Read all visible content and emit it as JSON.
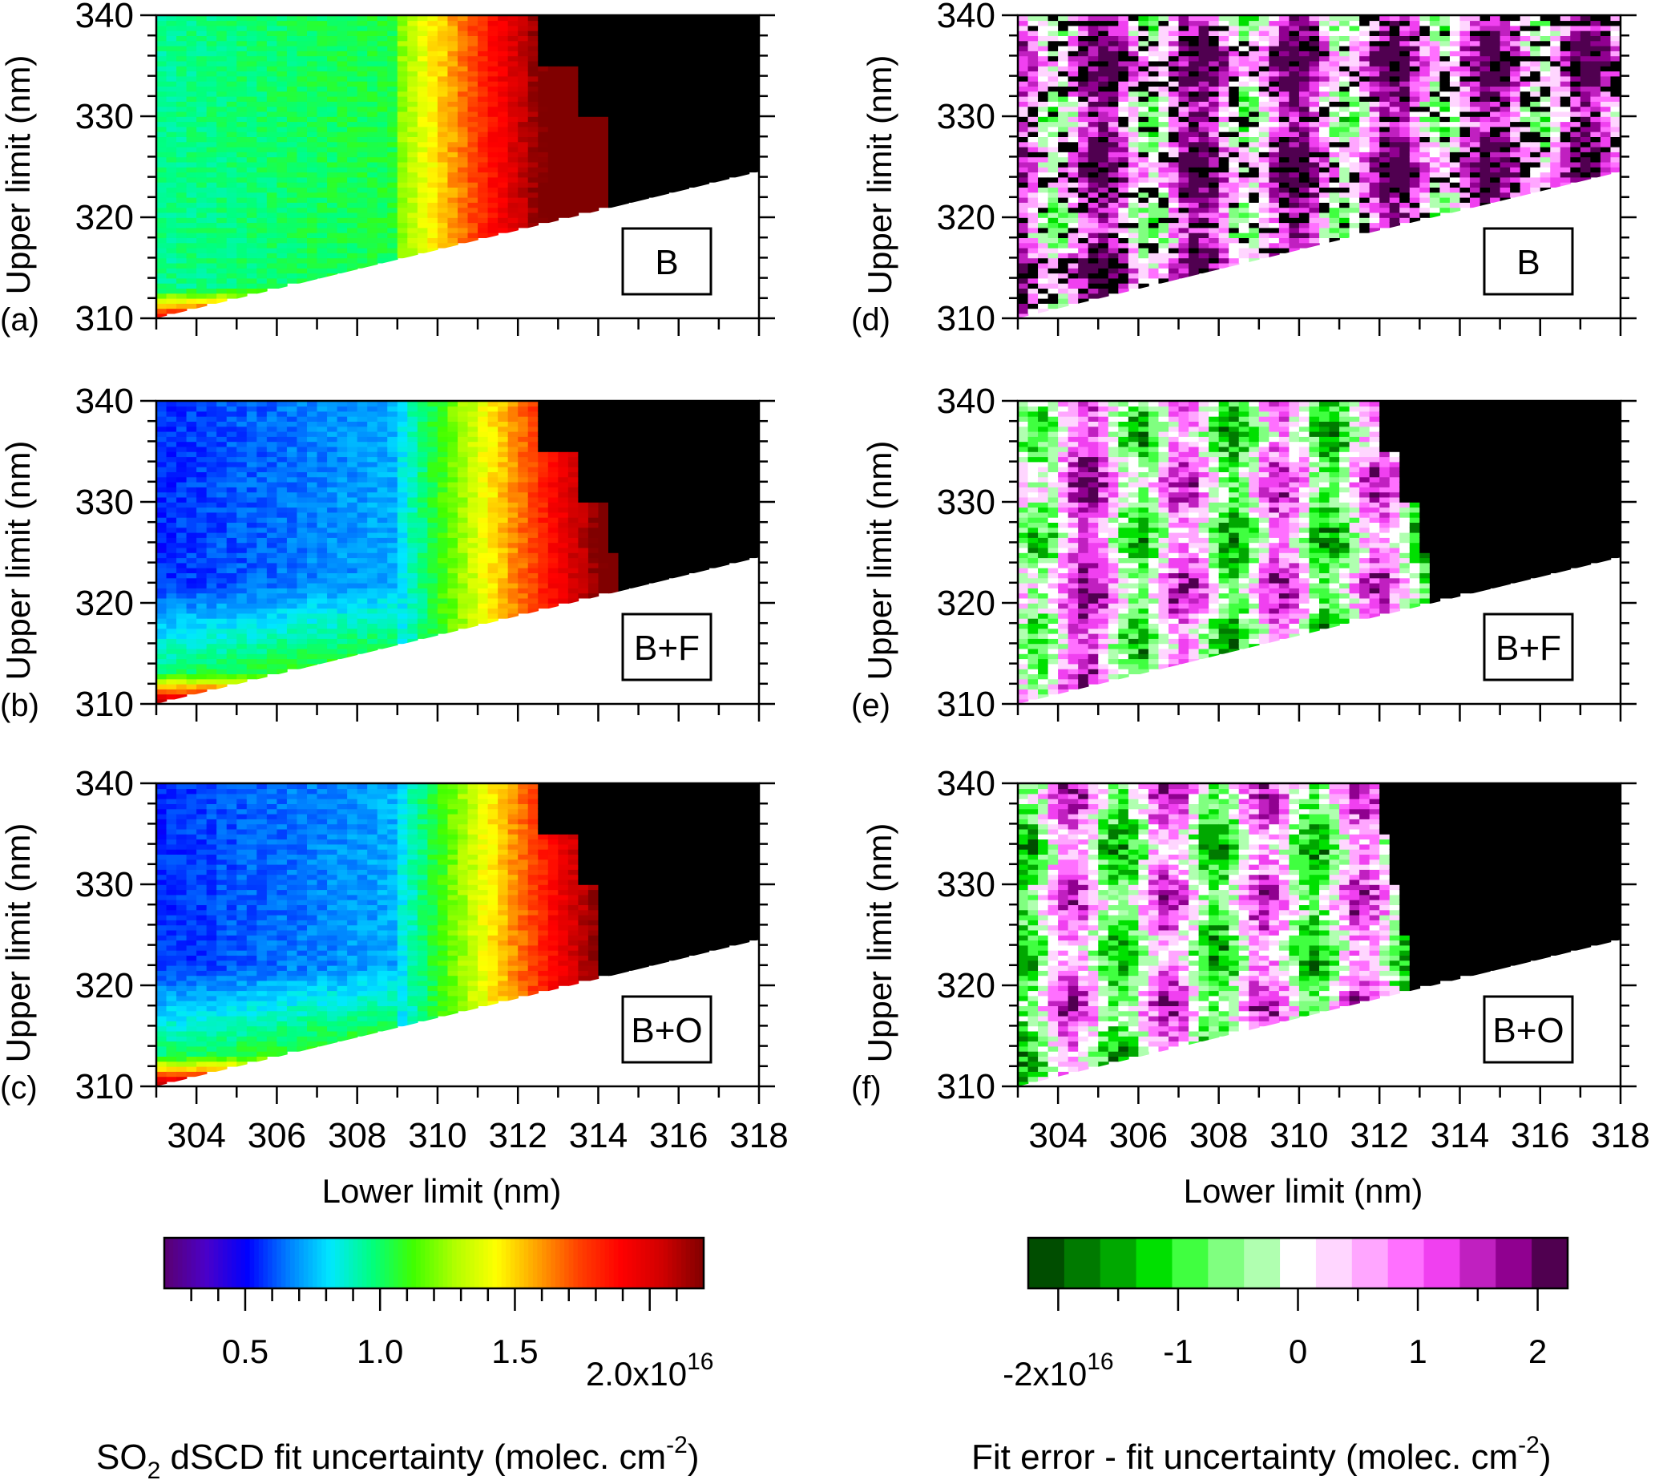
{
  "chart_data": [
    {
      "type": "heatmap",
      "panel": "(a)",
      "label": "B",
      "colorbar": "uncertainty",
      "ylabel": "Upper limit (nm)",
      "xlim": [
        303,
        318
      ],
      "ylim": [
        310,
        340
      ],
      "yticks": [
        "310",
        "320",
        "330",
        "340"
      ],
      "boundary": {
        "lower_limit": [
          303,
          318
        ],
        "upper_limit": [
          310,
          324.5
        ]
      },
      "cutoff_x": [
        312,
        313.2,
        314.2,
        314.2,
        313.5,
        312.5
      ]
    },
    {
      "type": "heatmap",
      "panel": "(b)",
      "label": "B+F",
      "colorbar": "uncertainty",
      "ylabel": "Upper limit (nm)",
      "xlim": [
        303,
        318
      ],
      "ylim": [
        310,
        340
      ],
      "yticks": [
        "310",
        "320",
        "330",
        "340"
      ],
      "boundary": {
        "lower_limit": [
          303,
          318
        ],
        "upper_limit": [
          310,
          324.5
        ]
      },
      "cutoff_x": [
        312,
        313.2,
        314.5,
        314.2,
        313.5,
        312.5
      ]
    },
    {
      "type": "heatmap",
      "panel": "(c)",
      "label": "B+O",
      "colorbar": "uncertainty",
      "ylabel": "Upper limit (nm)",
      "xlabel": "Lower limit (nm)",
      "xlim": [
        303,
        318
      ],
      "ylim": [
        310,
        340
      ],
      "xticks": [
        "304",
        "306",
        "308",
        "310",
        "312",
        "314",
        "316",
        "318"
      ],
      "yticks": [
        "310",
        "320",
        "330",
        "340"
      ],
      "boundary": {
        "lower_limit": [
          303,
          318
        ],
        "upper_limit": [
          310,
          324.5
        ]
      },
      "cutoff_x": [
        312,
        313.2,
        314,
        314,
        313.5,
        312.5
      ]
    },
    {
      "type": "heatmap",
      "panel": "(d)",
      "label": "B",
      "colorbar": "difference",
      "ylabel": "Upper limit (nm)",
      "xlim": [
        303,
        318
      ],
      "ylim": [
        310,
        340
      ],
      "yticks": [
        "310",
        "320",
        "330",
        "340"
      ],
      "boundary": {
        "lower_limit": [
          303,
          318
        ],
        "upper_limit": [
          310,
          324.5
        ]
      },
      "cutoff_x": [
        318,
        318,
        318,
        318,
        318,
        318
      ]
    },
    {
      "type": "heatmap",
      "panel": "(e)",
      "label": "B+F",
      "colorbar": "difference",
      "ylabel": "Upper limit (nm)",
      "xlim": [
        303,
        318
      ],
      "ylim": [
        310,
        340
      ],
      "yticks": [
        "310",
        "320",
        "330",
        "340"
      ],
      "boundary": {
        "lower_limit": [
          303,
          318
        ],
        "upper_limit": [
          310,
          324.5
        ]
      },
      "cutoff_x": [
        312.3,
        313.2,
        313.2,
        313,
        312.5,
        312
      ]
    },
    {
      "type": "heatmap",
      "panel": "(f)",
      "label": "B+O",
      "colorbar": "difference",
      "ylabel": "Upper limit (nm)",
      "xlabel": "Lower limit (nm)",
      "xlim": [
        303,
        318
      ],
      "ylim": [
        310,
        340
      ],
      "xticks": [
        "304",
        "306",
        "308",
        "310",
        "312",
        "314",
        "316",
        "318"
      ],
      "yticks": [
        "310",
        "320",
        "330",
        "340"
      ],
      "boundary": {
        "lower_limit": [
          303,
          318
        ],
        "upper_limit": [
          310,
          324.5
        ]
      },
      "cutoff_x": [
        312.3,
        312.8,
        312.8,
        312.6,
        312.3,
        312
      ]
    }
  ],
  "colorbars": {
    "uncertainty": {
      "title_prefix": "SO",
      "title_sub": "2",
      "title_mid": " dSCD fit uncertainty (molec. cm",
      "title_sup": "-2",
      "title_end": ")",
      "range": [
        0.2,
        2.2
      ],
      "ticks": [
        {
          "value": 0.5,
          "label": "0.5"
        },
        {
          "value": 1.0,
          "label": "1.0"
        },
        {
          "value": 1.5,
          "label": "1.5"
        },
        {
          "value": 2.0,
          "label": "2.0x10",
          "exp": "16"
        }
      ],
      "colors": [
        "#5a0070",
        "#4b00c8",
        "#0000ff",
        "#0080ff",
        "#00e8ff",
        "#00ff80",
        "#40ff00",
        "#b0ff00",
        "#ffff00",
        "#ffa000",
        "#ff4000",
        "#ff0000",
        "#d00000",
        "#800000"
      ]
    },
    "difference": {
      "title": "Fit error - fit uncertainty (molec. cm",
      "title_sup": "-2",
      "title_end": ")",
      "range": [
        -2.25,
        2.25
      ],
      "ticks": [
        {
          "value": -2,
          "label": "-2x10",
          "exp": "16"
        },
        {
          "value": -1,
          "label": "-1"
        },
        {
          "value": 0,
          "label": "0"
        },
        {
          "value": 1,
          "label": "1"
        },
        {
          "value": 2,
          "label": "2"
        }
      ],
      "colors": [
        "#004d00",
        "#007a00",
        "#00a800",
        "#00e000",
        "#40ff40",
        "#80ff80",
        "#b0ffb0",
        "#ffffff",
        "#ffd6ff",
        "#ffa6ff",
        "#ff70ff",
        "#f040f0",
        "#c020c0",
        "#900090",
        "#500050"
      ]
    }
  }
}
